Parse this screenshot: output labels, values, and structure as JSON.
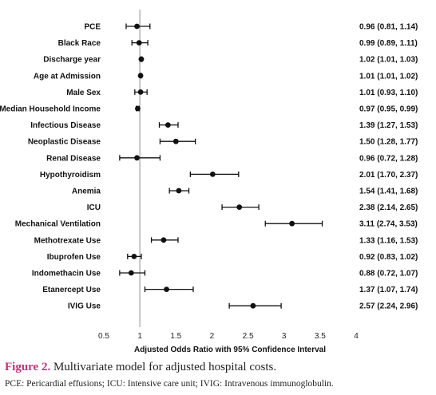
{
  "chart_data": {
    "type": "forest",
    "xlabel": "Adjusted Odds Ratio with 95% Confidence Interval",
    "xlim": [
      0.5,
      4
    ],
    "xticks": [
      "0.5",
      "1",
      "1.5",
      "2",
      "2.5",
      "3",
      "3.5",
      "4"
    ],
    "reference_line": 1,
    "rows": [
      {
        "label": "PCE",
        "or": 0.96,
        "low": 0.81,
        "high": 1.14,
        "ci_text": "0.96 (0.81, 1.14)"
      },
      {
        "label": "Black Race",
        "or": 0.99,
        "low": 0.89,
        "high": 1.11,
        "ci_text": "0.99 (0.89, 1.11)"
      },
      {
        "label": "Discharge year",
        "or": 1.02,
        "low": 1.01,
        "high": 1.03,
        "ci_text": "1.02 (1.01, 1.03)"
      },
      {
        "label": "Age at Admission",
        "or": 1.01,
        "low": 1.01,
        "high": 1.02,
        "ci_text": "1.01 (1.01, 1.02)"
      },
      {
        "label": "Male Sex",
        "or": 1.01,
        "low": 0.93,
        "high": 1.1,
        "ci_text": "1.01 (0.93, 1.10)"
      },
      {
        "label": "Median Household Income",
        "or": 0.97,
        "low": 0.95,
        "high": 0.99,
        "ci_text": "0.97 (0.95, 0.99)"
      },
      {
        "label": "Infectious Disease",
        "or": 1.39,
        "low": 1.27,
        "high": 1.53,
        "ci_text": "1.39 (1.27, 1.53)"
      },
      {
        "label": "Neoplastic Disease",
        "or": 1.5,
        "low": 1.28,
        "high": 1.77,
        "ci_text": "1.50 (1.28, 1.77)"
      },
      {
        "label": "Renal Disease",
        "or": 0.96,
        "low": 0.72,
        "high": 1.28,
        "ci_text": "0.96 (0.72, 1.28)"
      },
      {
        "label": "Hypothyroidism",
        "or": 2.01,
        "low": 1.7,
        "high": 2.37,
        "ci_text": "2.01 (1.70, 2.37)"
      },
      {
        "label": "Anemia",
        "or": 1.54,
        "low": 1.41,
        "high": 1.68,
        "ci_text": "1.54 (1.41, 1.68)"
      },
      {
        "label": "ICU",
        "or": 2.38,
        "low": 2.14,
        "high": 2.65,
        "ci_text": "2.38 (2.14, 2.65)"
      },
      {
        "label": "Mechanical Ventilation",
        "or": 3.11,
        "low": 2.74,
        "high": 3.53,
        "ci_text": "3.11 (2.74, 3.53)"
      },
      {
        "label": "Methotrexate Use",
        "or": 1.33,
        "low": 1.16,
        "high": 1.53,
        "ci_text": "1.33 (1.16, 1.53)"
      },
      {
        "label": "Ibuprofen Use",
        "or": 0.92,
        "low": 0.83,
        "high": 1.02,
        "ci_text": "0.92 (0.83, 1.02)"
      },
      {
        "label": "Indomethacin Use",
        "or": 0.88,
        "low": 0.72,
        "high": 1.07,
        "ci_text": "0.88 (0.72, 1.07)"
      },
      {
        "label": "Etanercept Use",
        "or": 1.37,
        "low": 1.07,
        "high": 1.74,
        "ci_text": "1.37 (1.07, 1.74)"
      },
      {
        "label": "IVIG Use",
        "or": 2.57,
        "low": 2.24,
        "high": 2.96,
        "ci_text": "2.57 (2.24, 2.96)"
      }
    ]
  },
  "caption": {
    "figure_label": "Figure 2.",
    "figure_title": "Multivariate model for adjusted hospital costs.",
    "note": "PCE: Pericardial effusions; ICU: Intensive care unit; IVIG: Intravenous immunoglobulin."
  },
  "colors": {
    "marker": "#111111",
    "reference_line": "#b5b5b5",
    "figure_label": "#c0307d"
  }
}
